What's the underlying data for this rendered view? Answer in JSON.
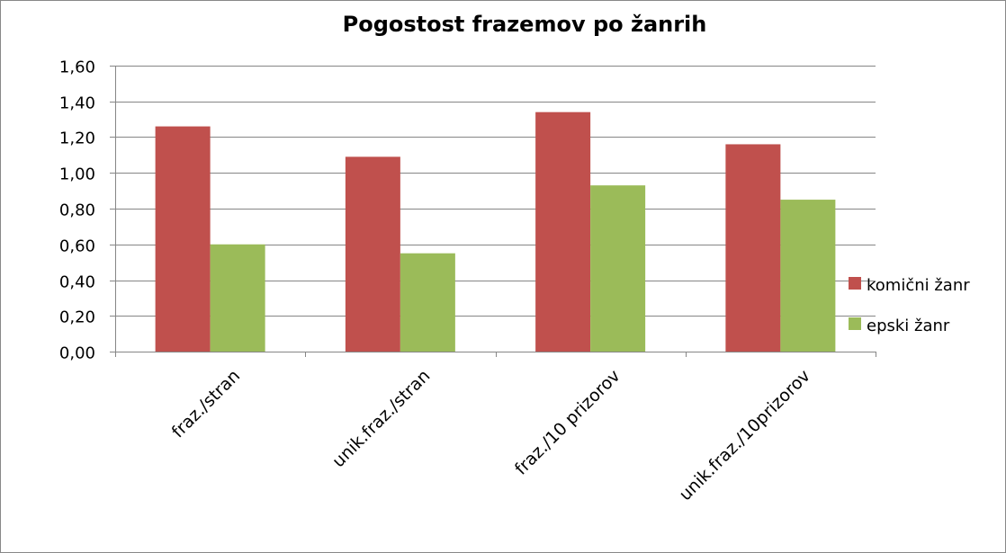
{
  "chart_data": {
    "type": "bar",
    "title": "Pogostost frazemov po žanrih",
    "categories": [
      "fraz./stran",
      "unik.fraz./stran",
      "fraz./10 prizorov",
      "unik.fraz./10prizorov"
    ],
    "series": [
      {
        "name": "komični žanr",
        "color": "#c0504d",
        "values": [
          1.26,
          1.09,
          1.34,
          1.16
        ]
      },
      {
        "name": "epski žanr",
        "color": "#9bbb59",
        "values": [
          0.6,
          0.55,
          0.93,
          0.85
        ]
      }
    ],
    "ylim": [
      0,
      1.6
    ],
    "yticks": [
      "0,00",
      "0,20",
      "0,40",
      "0,60",
      "0,80",
      "1,00",
      "1,20",
      "1,40",
      "1,60"
    ],
    "grid": true,
    "legend_position": "right"
  }
}
